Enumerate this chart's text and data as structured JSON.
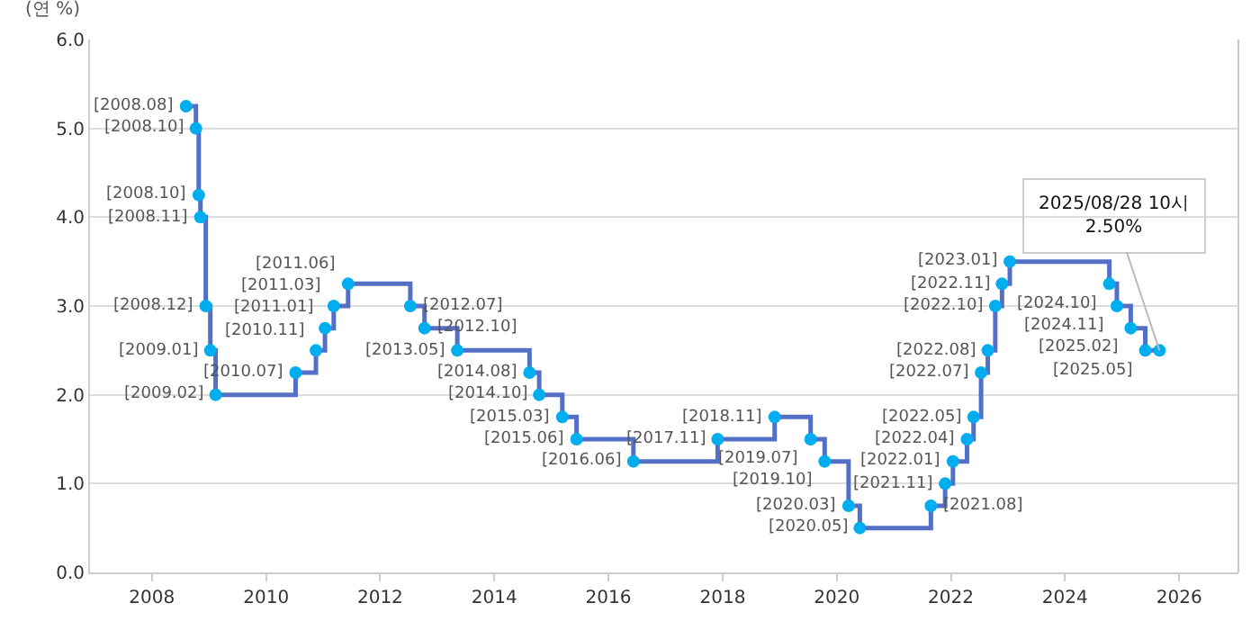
{
  "chart_data": {
    "type": "step",
    "ylabel": "(연 %)",
    "x": [
      "2008-08-07",
      "2008-10-09",
      "2008-10-27",
      "2008-11-07",
      "2008-12-11",
      "2009-01-09",
      "2009-02-12",
      "2010-07-09",
      "2010-11-16",
      "2011-01-13",
      "2011-03-10",
      "2011-06-10",
      "2012-07-12",
      "2012-10-11",
      "2013-05-09",
      "2014-08-14",
      "2014-10-15",
      "2015-03-12",
      "2015-06-11",
      "2016-06-09",
      "2017-11-30",
      "2018-11-30",
      "2019-07-18",
      "2019-10-16",
      "2020-03-17",
      "2020-05-28",
      "2021-08-26",
      "2021-11-25",
      "2022-01-14",
      "2022-04-14",
      "2022-05-26",
      "2022-07-13",
      "2022-08-25",
      "2022-10-12",
      "2022-11-24",
      "2023-01-13",
      "2024-10-11",
      "2024-11-28",
      "2025-02-25",
      "2025-05-29",
      "2025-08-28"
    ],
    "series": [
      {
        "color": "#5470c6",
        "marker": "none",
        "values": [
          5.25,
          5.0,
          4.25,
          4.0,
          3.0,
          2.5,
          2.0,
          2.25,
          2.5,
          2.75,
          3.0,
          3.25,
          3.0,
          2.75,
          2.5,
          2.25,
          2.0,
          1.75,
          1.5,
          1.25,
          1.5,
          1.75,
          1.5,
          1.25,
          0.75,
          0.5,
          0.75,
          1.0,
          1.25,
          1.5,
          1.75,
          2.25,
          2.5,
          3.0,
          3.25,
          3.5,
          3.25,
          3.0,
          2.75,
          2.5,
          2.5
        ]
      },
      {
        "type": "scatter",
        "color": "#00aeef",
        "marker": "circle",
        "values": [
          5.25,
          5.0,
          4.25,
          4.0,
          3.0,
          2.5,
          2.0,
          2.25,
          2.5,
          2.75,
          3.0,
          3.25,
          3.0,
          2.75,
          2.5,
          2.25,
          2.0,
          1.75,
          1.5,
          1.25,
          1.5,
          1.75,
          1.5,
          1.25,
          0.75,
          0.5,
          0.75,
          1.0,
          1.25,
          1.5,
          1.75,
          2.25,
          2.5,
          3.0,
          3.25,
          3.5,
          3.25,
          3.0,
          2.75,
          2.5,
          2.5
        ]
      }
    ],
    "xlim": [
      "2006-12-01",
      "2027-01-15"
    ],
    "xticks": [
      {
        "value": "2008-01-01",
        "label": "2008"
      },
      {
        "value": "2010-01-01",
        "label": "2010"
      },
      {
        "value": "2012-01-01",
        "label": "2012"
      },
      {
        "value": "2014-01-01",
        "label": "2014"
      },
      {
        "value": "2016-01-01",
        "label": "2016"
      },
      {
        "value": "2018-01-01",
        "label": "2018"
      },
      {
        "value": "2020-01-01",
        "label": "2020"
      },
      {
        "value": "2022-01-01",
        "label": "2022"
      },
      {
        "value": "2024-01-01",
        "label": "2024"
      },
      {
        "value": "2026-01-01",
        "label": "2026"
      }
    ],
    "ylim": [
      0,
      6
    ],
    "yticks": [
      {
        "value": 0,
        "label": "0.0"
      },
      {
        "value": 1,
        "label": "1.0"
      },
      {
        "value": 2,
        "label": "2.0"
      },
      {
        "value": 3,
        "label": "3.0"
      },
      {
        "value": 4,
        "label": "4.0"
      },
      {
        "value": 5,
        "label": "5.0"
      },
      {
        "value": 6,
        "label": "6.0"
      }
    ],
    "grid": "y",
    "line_style": "solid",
    "annotations": [
      {
        "text": "[2008.08]",
        "x": "2008-08-07",
        "y": 5.25
      },
      {
        "text": "[2008.10]",
        "x": "2008-10-09",
        "y": 5.0
      },
      {
        "text": "[2008.10]",
        "x": "2008-10-27",
        "y": 4.25
      },
      {
        "text": "[2008.11]",
        "x": "2008-11-07",
        "y": 4.0
      },
      {
        "text": "[2008.12]",
        "x": "2008-12-11",
        "y": 3.0
      },
      {
        "text": "[2009.01]",
        "x": "2009-01-09",
        "y": 2.5
      },
      {
        "text": "[2009.02]",
        "x": "2009-02-12",
        "y": 2.0
      },
      {
        "text": "[2010.07]",
        "x": "2010-07-09",
        "y": 2.25
      },
      {
        "text": "[2010.11]",
        "x": "2010-11-16",
        "y": 2.5
      },
      {
        "text": "[2011.01]",
        "x": "2011-01-13",
        "y": 2.75
      },
      {
        "text": "[2011.03]",
        "x": "2011-03-10",
        "y": 3.0
      },
      {
        "text": "[2011.06]",
        "x": "2011-06-10",
        "y": 3.25
      },
      {
        "text": "[2012.07]",
        "x": "2012-07-12",
        "y": 3.0
      },
      {
        "text": "[2012.10]",
        "x": "2012-10-11",
        "y": 2.75
      },
      {
        "text": "[2013.05]",
        "x": "2013-05-09",
        "y": 2.5
      },
      {
        "text": "[2014.08]",
        "x": "2014-08-14",
        "y": 2.25
      },
      {
        "text": "[2014.10]",
        "x": "2014-10-15",
        "y": 2.0
      },
      {
        "text": "[2015.03]",
        "x": "2015-03-12",
        "y": 1.75
      },
      {
        "text": "[2015.06]",
        "x": "2015-06-11",
        "y": 1.5
      },
      {
        "text": "[2016.06]",
        "x": "2016-06-09",
        "y": 1.25
      },
      {
        "text": "[2017.11]",
        "x": "2017-11-30",
        "y": 1.5
      },
      {
        "text": "[2018.11]",
        "x": "2018-11-30",
        "y": 1.75
      },
      {
        "text": "[2019.07]",
        "x": "2019-07-18",
        "y": 1.5
      },
      {
        "text": "[2019.10]",
        "x": "2019-10-16",
        "y": 1.25
      },
      {
        "text": "[2020.03]",
        "x": "2020-03-17",
        "y": 0.75
      },
      {
        "text": "[2020.05]",
        "x": "2020-05-28",
        "y": 0.5
      },
      {
        "text": "[2021.08]",
        "x": "2021-08-26",
        "y": 0.75
      },
      {
        "text": "[2021.11]",
        "x": "2021-11-25",
        "y": 1.0
      },
      {
        "text": "[2022.01]",
        "x": "2022-01-14",
        "y": 1.25
      },
      {
        "text": "[2022.04]",
        "x": "2022-04-14",
        "y": 1.5
      },
      {
        "text": "[2022.05]",
        "x": "2022-05-26",
        "y": 1.75
      },
      {
        "text": "[2022.07]",
        "x": "2022-07-13",
        "y": 2.25
      },
      {
        "text": "[2022.08]",
        "x": "2022-08-25",
        "y": 2.5
      },
      {
        "text": "[2022.10]",
        "x": "2022-10-12",
        "y": 3.0
      },
      {
        "text": "[2022.11]",
        "x": "2022-11-24",
        "y": 3.25
      },
      {
        "text": "[2023.01]",
        "x": "2023-01-13",
        "y": 3.5
      },
      {
        "text": "[2024.10]",
        "x": "2024-10-11",
        "y": 3.25
      },
      {
        "text": "[2024.11]",
        "x": "2024-11-28",
        "y": 3.0
      },
      {
        "text": "[2025.02]",
        "x": "2025-02-25",
        "y": 2.75
      },
      {
        "text": "[2025.05]",
        "x": "2025-05-29",
        "y": 2.5
      },
      {
        "text": "2025/08/28 10시\n2.50%",
        "x": "2025-08-28",
        "y": 2.5
      }
    ]
  }
}
